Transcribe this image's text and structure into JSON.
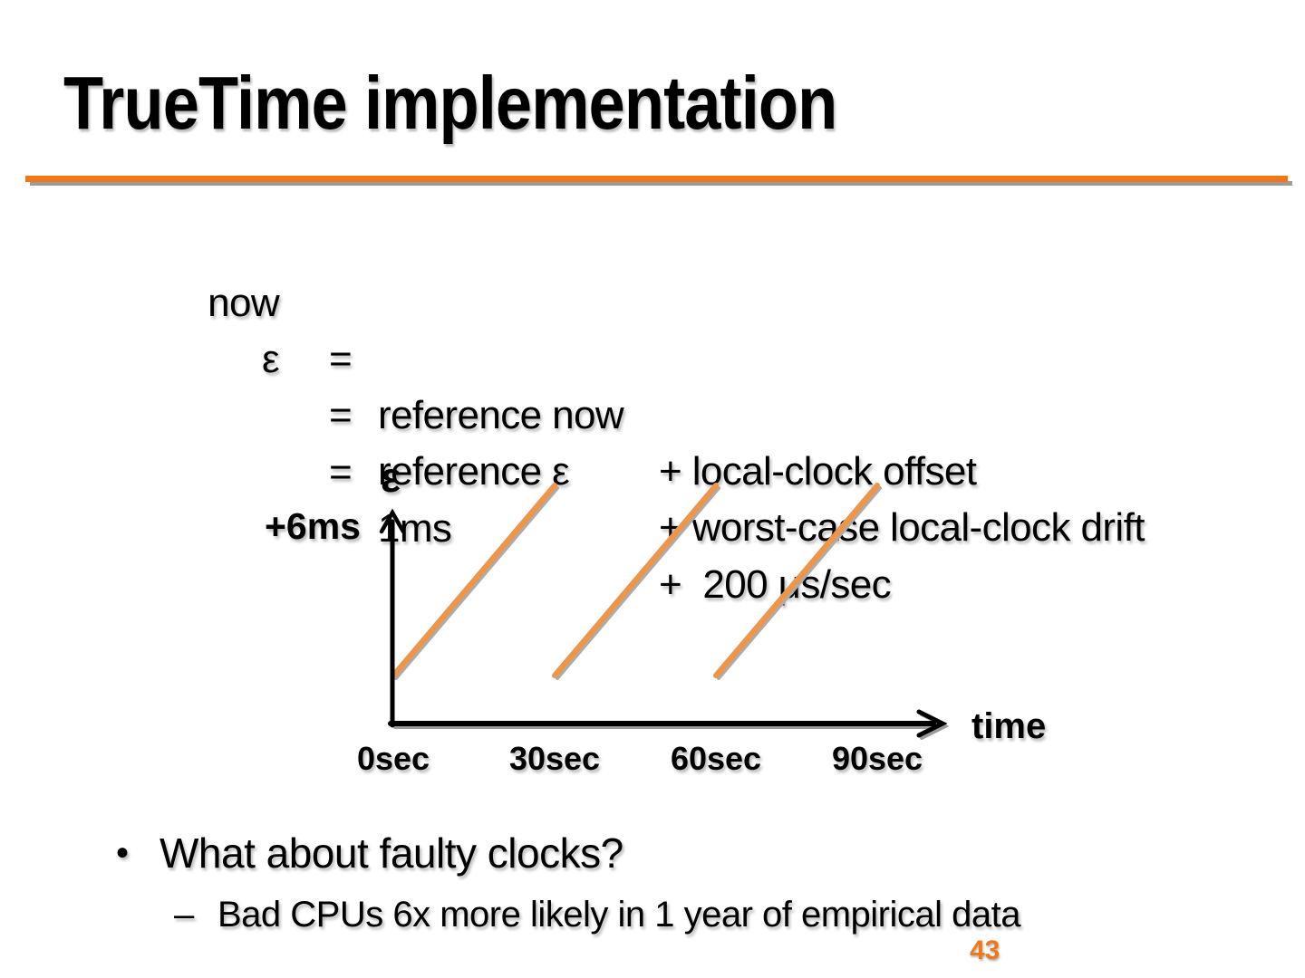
{
  "slide": {
    "title": "TrueTime implementation",
    "page_number": "43"
  },
  "colors": {
    "accent_orange": "#F07818",
    "chart_line_orange": "#EF9545",
    "shadow_gray": "#9B9B9B",
    "line_shadow_gray": "#ABABAB",
    "axis_black": "#000000",
    "page_number_orange": "#F07818"
  },
  "equations": {
    "rows": [
      {
        "lhs": "now",
        "eq": "=",
        "term1": "reference now",
        "term2": "+ local-clock offset"
      },
      {
        "lhs": "ε",
        "eq": "=",
        "term1": "reference ε",
        "term2": "+ worst-case local-clock drift"
      },
      {
        "lhs": "",
        "eq": "=",
        "term1": "1ms",
        "term2": "+  200 μs/sec"
      }
    ]
  },
  "chart_data": {
    "type": "line",
    "title": "",
    "xlabel": "time",
    "ylabel": "ε",
    "y_top_label": "+6ms",
    "x_ticks": [
      "0sec",
      "30sec",
      "60sec",
      "90sec"
    ],
    "x_tick_seconds": [
      0,
      30,
      60,
      90
    ],
    "grid": false,
    "legend": false,
    "reset_period_sec": 30,
    "drift_rate": "200 μs/sec",
    "series": [
      {
        "name": "clock-uncertainty-sawtooth",
        "segments": [
          {
            "x_sec": [
              0,
              30
            ],
            "y_ms": [
              1,
              7
            ]
          },
          {
            "x_sec": [
              30,
              60
            ],
            "y_ms": [
              1,
              7
            ]
          },
          {
            "x_sec": [
              60,
              90
            ],
            "y_ms": [
              1,
              7
            ]
          }
        ]
      }
    ]
  },
  "bullets": {
    "bullet_char": "•",
    "dash_char": "–",
    "items": [
      {
        "level": 1,
        "text": "What about faulty clocks?"
      },
      {
        "level": 2,
        "text": "Bad CPUs 6x more likely in 1 year of empirical data"
      }
    ]
  }
}
